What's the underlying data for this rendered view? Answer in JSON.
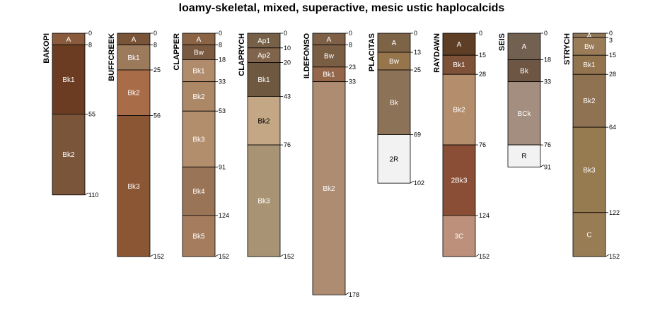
{
  "chart_data": {
    "type": "soil-profile-sketch",
    "title": "loamy-skeletal, mixed, superactive, mesic ustic haplocalcids",
    "depth_units": "cm",
    "profiles": [
      {
        "name": "BAKOPI",
        "bottom": 110,
        "horizons": [
          {
            "name": "A",
            "top": 0,
            "bottom": 8,
            "color": "#8a5a3c"
          },
          {
            "name": "Bk1",
            "top": 8,
            "bottom": 55,
            "color": "#6b3c22"
          },
          {
            "name": "Bk2",
            "top": 55,
            "bottom": 110,
            "color": "#7a553a"
          }
        ]
      },
      {
        "name": "BUFFCREEK",
        "bottom": 152,
        "horizons": [
          {
            "name": "A",
            "top": 0,
            "bottom": 8,
            "color": "#7a5438"
          },
          {
            "name": "Bk1",
            "top": 8,
            "bottom": 25,
            "color": "#9c7a5c"
          },
          {
            "name": "Bk2",
            "top": 25,
            "bottom": 56,
            "color": "#a86c48"
          },
          {
            "name": "Bk3",
            "top": 56,
            "bottom": 152,
            "color": "#8b5634"
          }
        ]
      },
      {
        "name": "CLAPPER",
        "bottom": 152,
        "horizons": [
          {
            "name": "A",
            "top": 0,
            "bottom": 8,
            "color": "#8b6446"
          },
          {
            "name": "Bw",
            "top": 8,
            "bottom": 18,
            "color": "#7a5a40"
          },
          {
            "name": "Bk1",
            "top": 18,
            "bottom": 33,
            "color": "#b08c6c"
          },
          {
            "name": "Bk2",
            "top": 33,
            "bottom": 53,
            "color": "#ad8866"
          },
          {
            "name": "Bk3",
            "top": 53,
            "bottom": 91,
            "color": "#b38e6c"
          },
          {
            "name": "Bk4",
            "top": 91,
            "bottom": 124,
            "color": "#9a7456"
          },
          {
            "name": "Bk5",
            "top": 124,
            "bottom": 152,
            "color": "#a57d5e"
          }
        ]
      },
      {
        "name": "CLAPRYCH",
        "bottom": 152,
        "horizons": [
          {
            "name": "Ap1",
            "top": 0,
            "bottom": 10,
            "color": "#766048"
          },
          {
            "name": "Ap2",
            "top": 10,
            "bottom": 20,
            "color": "#80654c"
          },
          {
            "name": "Bk1",
            "top": 20,
            "bottom": 43,
            "color": "#6e5840"
          },
          {
            "name": "Bk2",
            "top": 43,
            "bottom": 76,
            "color": "#c4a886"
          },
          {
            "name": "Bk3",
            "top": 76,
            "bottom": 152,
            "color": "#a89474"
          }
        ]
      },
      {
        "name": "ILDEFONSO",
        "bottom": 178,
        "horizons": [
          {
            "name": "A",
            "top": 0,
            "bottom": 8,
            "color": "#7e6046"
          },
          {
            "name": "Bw",
            "top": 8,
            "bottom": 23,
            "color": "#7a5e44"
          },
          {
            "name": "Bk1",
            "top": 23,
            "bottom": 33,
            "color": "#94664a"
          },
          {
            "name": "Bk2",
            "top": 33,
            "bottom": 178,
            "color": "#ae8c72"
          }
        ]
      },
      {
        "name": "PLACITAS",
        "bottom": 102,
        "horizons": [
          {
            "name": "A",
            "top": 0,
            "bottom": 13,
            "color": "#7e6446"
          },
          {
            "name": "Bw",
            "top": 13,
            "bottom": 25,
            "color": "#96744c"
          },
          {
            "name": "Bk",
            "top": 25,
            "bottom": 69,
            "color": "#8c7256"
          },
          {
            "name": "2R",
            "top": 69,
            "bottom": 102,
            "color": "#f2f2f2"
          }
        ]
      },
      {
        "name": "RAYDAWN",
        "bottom": 152,
        "horizons": [
          {
            "name": "A",
            "top": 0,
            "bottom": 15,
            "color": "#5e3e24"
          },
          {
            "name": "Bk1",
            "top": 15,
            "bottom": 28,
            "color": "#7e5238"
          },
          {
            "name": "Bk2",
            "top": 28,
            "bottom": 76,
            "color": "#b48e6c"
          },
          {
            "name": "2Bk3",
            "top": 76,
            "bottom": 124,
            "color": "#8a4e36"
          },
          {
            "name": "3C",
            "top": 124,
            "bottom": 152,
            "color": "#bc907a"
          }
        ]
      },
      {
        "name": "SEIS",
        "bottom": 91,
        "horizons": [
          {
            "name": "A",
            "top": 0,
            "bottom": 18,
            "color": "#726050"
          },
          {
            "name": "Bk",
            "top": 18,
            "bottom": 33,
            "color": "#6e5644"
          },
          {
            "name": "BCk",
            "top": 33,
            "bottom": 76,
            "color": "#a48e80"
          },
          {
            "name": "R",
            "top": 76,
            "bottom": 91,
            "color": "#f2f2f2"
          }
        ]
      },
      {
        "name": "STRYCH",
        "bottom": 152,
        "horizons": [
          {
            "name": "A",
            "top": 0,
            "bottom": 3,
            "color": "#8e7656"
          },
          {
            "name": "Bw",
            "top": 3,
            "bottom": 15,
            "color": "#9a7c58"
          },
          {
            "name": "Bk1",
            "top": 15,
            "bottom": 28,
            "color": "#92744e"
          },
          {
            "name": "Bk2",
            "top": 28,
            "bottom": 64,
            "color": "#8e7252"
          },
          {
            "name": "Bk3",
            "top": 64,
            "bottom": 122,
            "color": "#967a50"
          },
          {
            "name": "C",
            "top": 122,
            "bottom": 152,
            "color": "#987c54"
          }
        ]
      }
    ]
  }
}
